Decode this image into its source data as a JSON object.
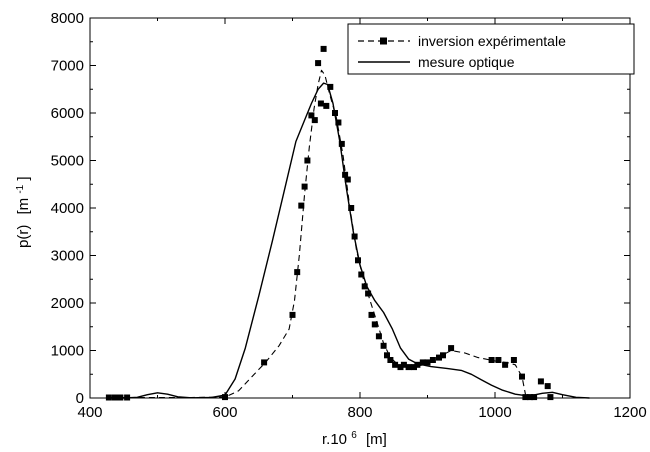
{
  "chart_data": {
    "type": "line",
    "title": "",
    "xlabel": {
      "base": "r.10",
      "exponent": "6",
      "unit": "[m]"
    },
    "ylabel": {
      "base": "p(r)",
      "unit_open": "[m",
      "exponent": "-1",
      "unit_close": "]"
    },
    "xlim": [
      400,
      1200
    ],
    "ylim": [
      0,
      8000
    ],
    "xticks": [
      400,
      600,
      800,
      1000,
      1200
    ],
    "yticks": [
      0,
      1000,
      2000,
      3000,
      4000,
      5000,
      6000,
      7000,
      8000
    ],
    "minor_ticks": true,
    "grid": false,
    "legend_position": "top-right",
    "series": [
      {
        "name": "inversion expérimentale",
        "style": "dashed-square-markers",
        "color": "#000000",
        "points": [
          [
            428,
            10
          ],
          [
            437,
            10
          ],
          [
            445,
            10
          ],
          [
            455,
            10
          ],
          [
            600,
            20
          ],
          [
            658,
            750
          ],
          [
            700,
            1750
          ],
          [
            707,
            2650
          ],
          [
            713,
            4050
          ],
          [
            718,
            4450
          ],
          [
            722,
            5000
          ],
          [
            728,
            5950
          ],
          [
            733,
            5850
          ],
          [
            738,
            7050
          ],
          [
            742,
            6200
          ],
          [
            746,
            7350
          ],
          [
            750,
            6150
          ],
          [
            756,
            6550
          ],
          [
            763,
            6000
          ],
          [
            768,
            5800
          ],
          [
            773,
            5350
          ],
          [
            778,
            4700
          ],
          [
            782,
            4600
          ],
          [
            787,
            4000
          ],
          [
            792,
            3400
          ],
          [
            797,
            2900
          ],
          [
            802,
            2600
          ],
          [
            807,
            2350
          ],
          [
            812,
            2200
          ],
          [
            817,
            1750
          ],
          [
            822,
            1550
          ],
          [
            828,
            1300
          ],
          [
            835,
            1100
          ],
          [
            840,
            900
          ],
          [
            845,
            800
          ],
          [
            852,
            700
          ],
          [
            860,
            650
          ],
          [
            865,
            700
          ],
          [
            872,
            650
          ],
          [
            880,
            650
          ],
          [
            885,
            700
          ],
          [
            893,
            750
          ],
          [
            900,
            750
          ],
          [
            908,
            800
          ],
          [
            917,
            850
          ],
          [
            923,
            900
          ],
          [
            935,
            1050
          ],
          [
            995,
            800
          ],
          [
            1005,
            800
          ],
          [
            1015,
            700
          ],
          [
            1028,
            800
          ],
          [
            1040,
            450
          ],
          [
            1045,
            20
          ],
          [
            1052,
            20
          ],
          [
            1058,
            20
          ],
          [
            1068,
            350
          ],
          [
            1078,
            250
          ],
          [
            1082,
            20
          ]
        ],
        "curve": [
          [
            428,
            10
          ],
          [
            480,
            10
          ],
          [
            550,
            10
          ],
          [
            600,
            20
          ],
          [
            620,
            150
          ],
          [
            640,
            450
          ],
          [
            660,
            750
          ],
          [
            680,
            1100
          ],
          [
            695,
            1450
          ],
          [
            703,
            2050
          ],
          [
            710,
            3000
          ],
          [
            718,
            4300
          ],
          [
            725,
            5300
          ],
          [
            732,
            6100
          ],
          [
            738,
            6600
          ],
          [
            743,
            6900
          ],
          [
            748,
            6800
          ],
          [
            755,
            6400
          ],
          [
            765,
            5900
          ],
          [
            775,
            5100
          ],
          [
            785,
            4000
          ],
          [
            795,
            3100
          ],
          [
            805,
            2500
          ],
          [
            815,
            2050
          ],
          [
            825,
            1600
          ],
          [
            835,
            1150
          ],
          [
            845,
            850
          ],
          [
            858,
            680
          ],
          [
            875,
            650
          ],
          [
            895,
            700
          ],
          [
            915,
            850
          ],
          [
            935,
            1000
          ],
          [
            955,
            950
          ],
          [
            975,
            850
          ],
          [
            1000,
            780
          ],
          [
            1020,
            740
          ],
          [
            1030,
            700
          ],
          [
            1040,
            450
          ],
          [
            1046,
            20
          ]
        ]
      },
      {
        "name": "mesure optique",
        "style": "solid",
        "color": "#000000",
        "curve": [
          [
            430,
            0
          ],
          [
            450,
            0
          ],
          [
            470,
            15
          ],
          [
            485,
            70
          ],
          [
            500,
            110
          ],
          [
            515,
            80
          ],
          [
            530,
            25
          ],
          [
            550,
            5
          ],
          [
            580,
            10
          ],
          [
            600,
            60
          ],
          [
            615,
            400
          ],
          [
            630,
            1050
          ],
          [
            650,
            2150
          ],
          [
            670,
            3300
          ],
          [
            690,
            4500
          ],
          [
            705,
            5400
          ],
          [
            718,
            5850
          ],
          [
            728,
            6200
          ],
          [
            738,
            6500
          ],
          [
            746,
            6630
          ],
          [
            752,
            6600
          ],
          [
            760,
            6200
          ],
          [
            770,
            5400
          ],
          [
            780,
            4400
          ],
          [
            790,
            3500
          ],
          [
            800,
            2800
          ],
          [
            810,
            2350
          ],
          [
            822,
            2050
          ],
          [
            835,
            1800
          ],
          [
            848,
            1450
          ],
          [
            860,
            1050
          ],
          [
            872,
            820
          ],
          [
            885,
            720
          ],
          [
            905,
            660
          ],
          [
            930,
            620
          ],
          [
            950,
            580
          ],
          [
            965,
            500
          ],
          [
            980,
            380
          ],
          [
            995,
            270
          ],
          [
            1010,
            170
          ],
          [
            1030,
            80
          ],
          [
            1050,
            40
          ],
          [
            1070,
            100
          ],
          [
            1085,
            120
          ],
          [
            1100,
            70
          ],
          [
            1120,
            15
          ],
          [
            1140,
            0
          ]
        ]
      }
    ]
  }
}
